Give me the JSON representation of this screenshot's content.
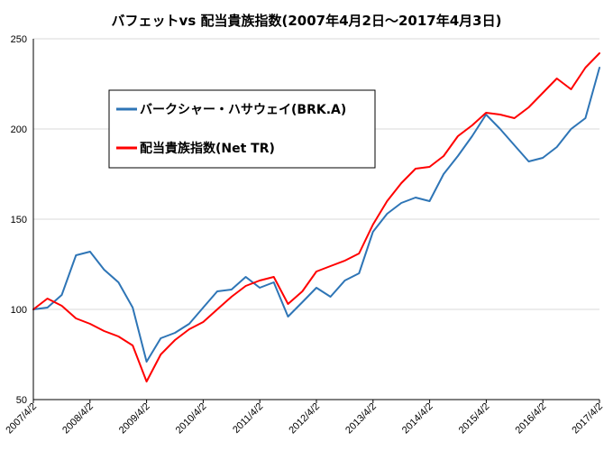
{
  "chart_data": {
    "type": "line",
    "title": "バフェットvs 配当貴族指数(2007年4月2日～2017年4月3日)",
    "xlabel": "",
    "ylabel": "",
    "ylim": [
      50,
      250
    ],
    "yticks": [
      "50",
      "100",
      "150",
      "200",
      "250"
    ],
    "x_tick_labels": [
      "2007/4/2",
      "2008/4/2",
      "2009/4/2",
      "2010/4/2",
      "2011/4/2",
      "2012/4/2",
      "2013/4/2",
      "2014/4/2",
      "2015/4/2",
      "2016/4/2",
      "2017/4/2"
    ],
    "grid": "horizontal",
    "legend_position": "upper-left",
    "x": [
      "2007/4/2",
      "2007/7/2",
      "2007/10/2",
      "2008/1/2",
      "2008/4/2",
      "2008/7/2",
      "2008/10/2",
      "2009/1/2",
      "2009/4/2",
      "2009/7/2",
      "2009/10/2",
      "2010/1/2",
      "2010/4/2",
      "2010/7/2",
      "2010/10/2",
      "2011/1/2",
      "2011/4/2",
      "2011/7/2",
      "2011/10/2",
      "2012/1/2",
      "2012/4/2",
      "2012/7/2",
      "2012/10/2",
      "2013/1/2",
      "2013/4/2",
      "2013/7/2",
      "2013/10/2",
      "2014/1/2",
      "2014/4/2",
      "2014/7/2",
      "2014/10/2",
      "2015/1/2",
      "2015/4/2",
      "2015/7/2",
      "2015/10/2",
      "2016/1/2",
      "2016/4/2",
      "2016/7/2",
      "2016/10/2",
      "2017/1/2",
      "2017/4/3"
    ],
    "series": [
      {
        "name": "バークシャー・ハサウェイ(BRK.A)",
        "color": "#2e75b6",
        "values": [
          100,
          101,
          108,
          130,
          132,
          122,
          115,
          101,
          71,
          84,
          87,
          92,
          101,
          110,
          111,
          118,
          112,
          115,
          96,
          104,
          112,
          107,
          116,
          120,
          143,
          153,
          159,
          162,
          160,
          175,
          185,
          196,
          208,
          200,
          191,
          182,
          184,
          190,
          200,
          206,
          234
        ]
      },
      {
        "name": "配当貴族指数(Net TR)",
        "color": "#ff0000",
        "values": [
          100,
          106,
          102,
          95,
          92,
          88,
          85,
          80,
          60,
          75,
          83,
          89,
          93,
          100,
          107,
          113,
          116,
          118,
          103,
          110,
          121,
          124,
          127,
          131,
          147,
          160,
          170,
          178,
          179,
          185,
          196,
          202,
          209,
          208,
          206,
          212,
          220,
          228,
          222,
          234,
          242
        ]
      }
    ]
  }
}
